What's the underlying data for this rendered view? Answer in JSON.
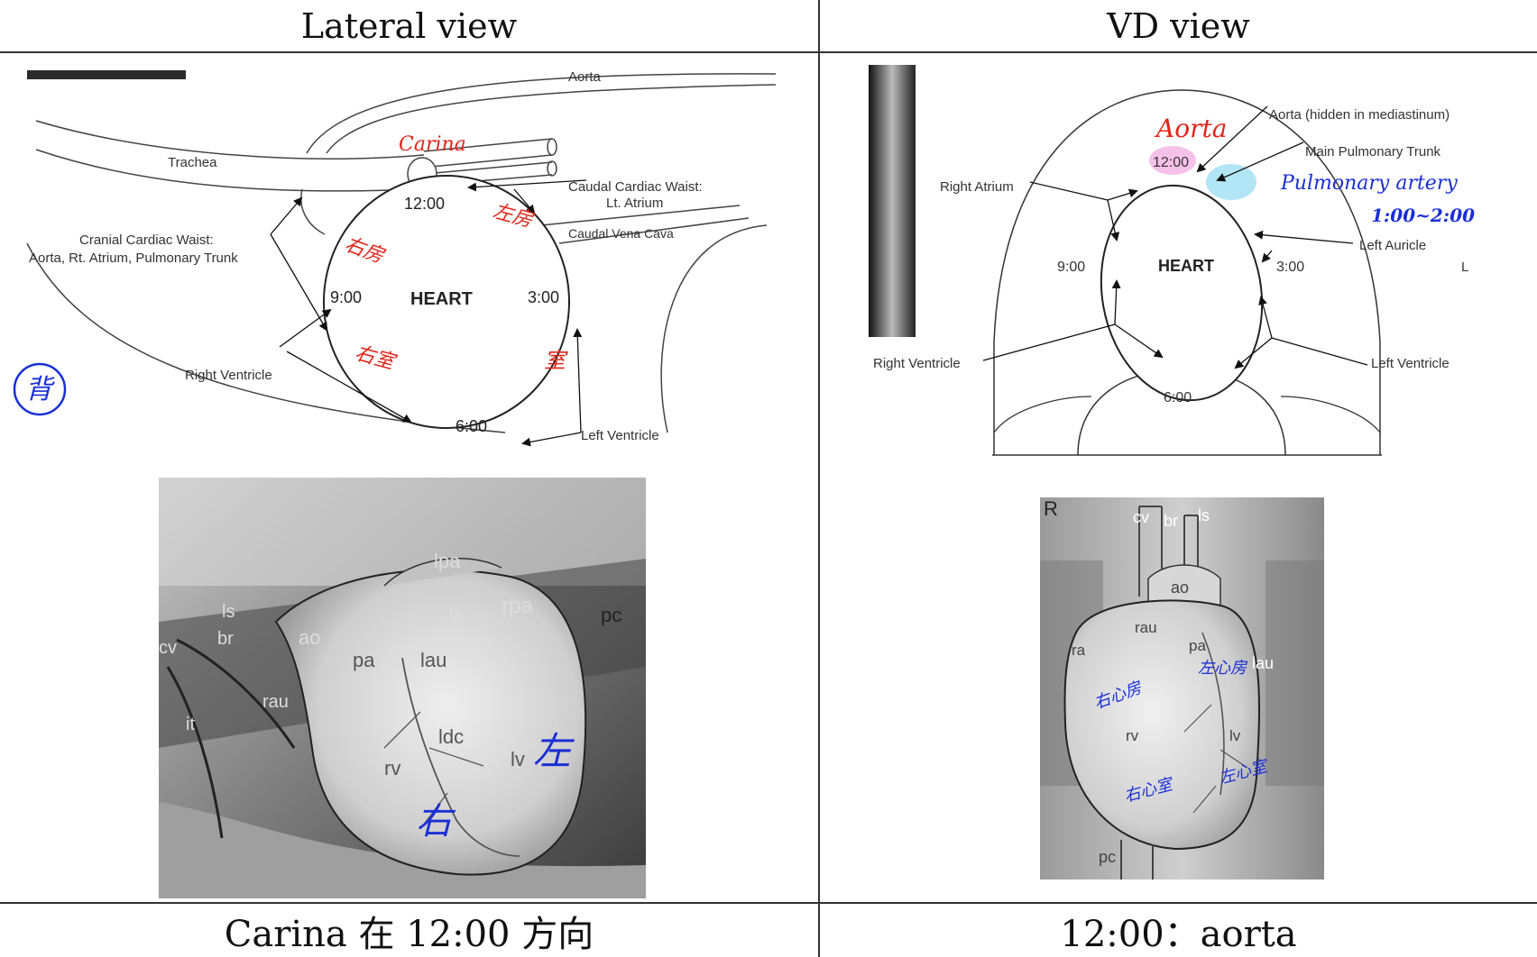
{
  "header": {
    "left": "Lateral view",
    "right": "VD view"
  },
  "footer": {
    "left": "Carina 在 12:00 方向",
    "right": "12:00：aorta"
  },
  "lateral": {
    "labels": {
      "aorta": "Aorta",
      "trachea": "Trachea",
      "carina": "Carina",
      "caudal_waist": "Caudal Cardiac Waist:",
      "caudal_waist_sub": "Lt. Atrium",
      "caudal_vena_cava": "Caudal Vena Cava",
      "cranial_waist": "Cranial Cardiac Waist:",
      "cranial_waist_sub": "Aorta, Rt. Atrium, Pulmonary Trunk",
      "right_ventricle": "Right Ventricle",
      "left_ventricle": "Left Ventricle",
      "heart": "HEART",
      "clock_12": "12:00",
      "clock_3": "3:00",
      "clock_6": "6:00",
      "clock_9": "9:00",
      "hand_right_atrium": "右房",
      "hand_left_atrium": "左房",
      "hand_right_ventricle": "右室",
      "hand_left_ventricle": "室",
      "hand_back": "背"
    },
    "photo_labels": {
      "lpa": "lpa",
      "rpa": "rpa",
      "ls": "ls",
      "br": "br",
      "cv": "cv",
      "ao": "ao",
      "la": "la",
      "pc": "pc",
      "pa": "pa",
      "lau": "lau",
      "rau": "rau",
      "it": "it",
      "ldc": "ldc",
      "rv": "rv",
      "lv": "lv",
      "hand_left": "左",
      "hand_right": "右"
    }
  },
  "vd": {
    "labels": {
      "aorta_hidden": "Aorta (hidden in mediastinum)",
      "main_pulmonary_trunk": "Main Pulmonary Trunk",
      "right_atrium": "Right Atrium",
      "left_auricle": "Left Auricle",
      "right_ventricle": "Right Ventricle",
      "left_ventricle": "Left Ventricle",
      "heart": "HEART",
      "clock_12": "12:00",
      "clock_3": "3:00",
      "clock_6": "6:00",
      "clock_9": "9:00",
      "side_l": "L",
      "hand_aorta": "Aorta",
      "hand_pulmonary_artery": "Pulmonary artery",
      "hand_time_range": "1:00~2:00"
    },
    "photo_labels": {
      "r": "R",
      "cv": "cv",
      "br": "br",
      "ls": "ls",
      "ao": "ao",
      "rau": "rau",
      "ra": "ra",
      "pa": "pa",
      "lau": "lau",
      "rv": "rv",
      "lv": "lv",
      "pc": "pc",
      "hand_ra": "右心房",
      "hand_la": "左心房",
      "hand_rv": "右心室",
      "hand_lv": "左心室"
    }
  },
  "colors": {
    "hand_red": "#e0261b",
    "hand_blue": "#1a2fd6",
    "aorta_highlight": "#f2a6e0",
    "pulmonary_highlight": "#7fd6f0"
  }
}
